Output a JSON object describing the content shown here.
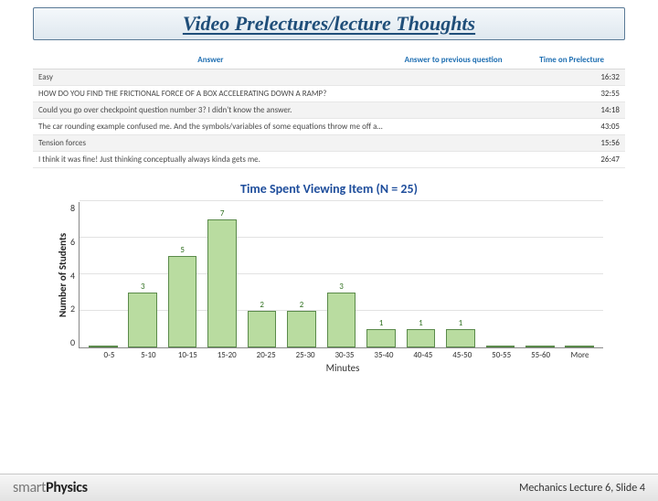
{
  "title": "Video Prelectures/lecture Thoughts",
  "table": {
    "columns": [
      "Answer",
      "Answer to previous question",
      "Time on Prelecture"
    ],
    "col_widths": [
      "60%",
      "22%",
      "18%"
    ],
    "rows": [
      [
        "Easy",
        "",
        "16:32"
      ],
      [
        "HOW DO YOU FIND THE FRICTIONAL FORCE OF A BOX ACCELERATING DOWN A RAMP?",
        "",
        "32:55"
      ],
      [
        "Could you go over checkpoint question number 3? I didn't know the answer.",
        "",
        "14:18"
      ],
      [
        "The car rounding example confused me. And the symbols/variables of some equations throw me off at times.",
        "",
        "43:05"
      ],
      [
        "Tension forces",
        "",
        "15:56"
      ],
      [
        "I think it was fine! Just thinking conceptually always kinda gets me.",
        "",
        "26:47"
      ]
    ]
  },
  "chart": {
    "type": "bar",
    "title": "Time Spent Viewing Item (N = 25)",
    "title_color": "#1f4e9c",
    "title_fontsize": 14,
    "ylabel": "Number of Students",
    "xlabel": "Minutes",
    "ylim": [
      0,
      8
    ],
    "ytick_step": 2,
    "categories": [
      "0-5",
      "5-10",
      "10-15",
      "15-20",
      "20-25",
      "25-30",
      "30-35",
      "35-40",
      "40-45",
      "45-50",
      "50-55",
      "55-60",
      "More"
    ],
    "values": [
      0,
      3,
      5,
      7,
      2,
      2,
      3,
      1,
      1,
      1,
      0,
      0,
      0
    ],
    "bar_fill": "#b9dca0",
    "bar_border": "#5a8a4a",
    "value_label_color": "#2f6f1f",
    "grid_color": "#e2e2e2",
    "axis_color": "#888888",
    "background_color": "#ffffff",
    "label_fontsize": 11,
    "tick_fontsize": 9
  },
  "footer": {
    "logo_light": "smart",
    "logo_bold": "Physics",
    "slide_ref": "Mechanics  Lecture 6, Slide 4"
  }
}
